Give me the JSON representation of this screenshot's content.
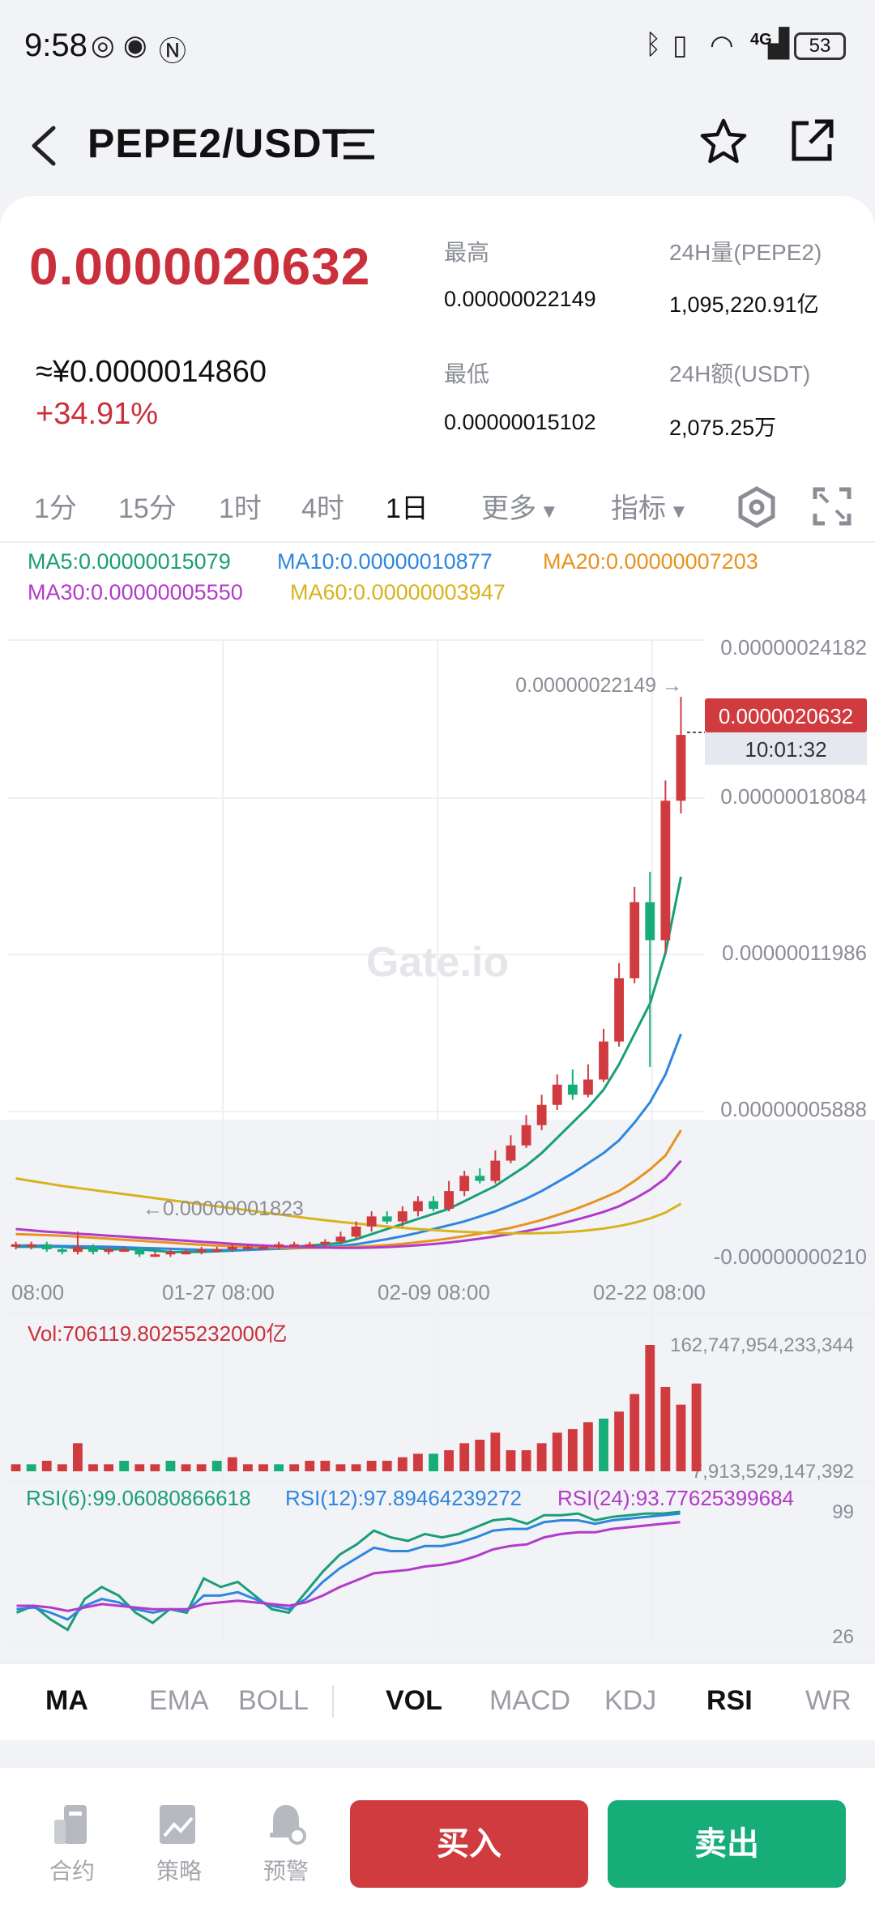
{
  "status": {
    "time": "9:58",
    "battery": "53",
    "network": "4G"
  },
  "header": {
    "pair": "PEPE2/USDT"
  },
  "ticker": {
    "last_price": "0.0000020632",
    "cny_price": "≈¥0.0000014860",
    "change_pct": "+34.91%",
    "high_label": "最高",
    "high_value": "0.00000022149",
    "low_label": "最低",
    "low_value": "0.00000015102",
    "vol_label": "24H量(PEPE2)",
    "vol_value": "1,095,220.91亿",
    "amt_label": "24H额(USDT)",
    "amt_value": "2,075.25万"
  },
  "timeframes": {
    "tf1": "1分",
    "tf2": "15分",
    "tf3": "1时",
    "tf4": "4时",
    "tf5": "1日",
    "more": "更多",
    "indicators": "指标"
  },
  "ma_legend": {
    "ma5": "MA5:0.00000015079",
    "ma10": "MA10:0.00000010877",
    "ma20": "MA20:0.00000007203",
    "ma30": "MA30:0.00000005550",
    "ma60": "MA60:0.00000003947"
  },
  "colors": {
    "up": "#d03b3f",
    "down": "#16ad78",
    "ma5": "#1a9e78",
    "ma10": "#2e86de",
    "ma20": "#e8921f",
    "ma30": "#b23bc9",
    "ma60": "#d9b21c"
  },
  "chart_data": {
    "type": "candlestick",
    "watermark": "Gate.io",
    "y_axis_labels": [
      "0.00000024182",
      "0.00000018084",
      "0.00000011986",
      "0.00000005888",
      "-0.00000000210"
    ],
    "x_axis_labels": [
      "08:00",
      "01-27 08:00",
      "02-09 08:00",
      "02-22 08:00"
    ],
    "high_marker": "0.00000022149 →",
    "low_marker": "←0.00000001823",
    "last_price_tag": "0.0000020632",
    "countdown": "10:01:32",
    "candles": [
      {
        "o": 0.4,
        "c": 0.5,
        "h": 0.6,
        "l": 0.3
      },
      {
        "o": 0.4,
        "c": 0.5,
        "h": 0.6,
        "l": 0.3
      },
      {
        "o": 0.5,
        "c": 0.3,
        "h": 0.6,
        "l": 0.2
      },
      {
        "o": 0.3,
        "c": 0.2,
        "h": 0.4,
        "l": 0.1
      },
      {
        "o": 0.2,
        "c": 0.4,
        "h": 1.0,
        "l": 0.1
      },
      {
        "o": 0.4,
        "c": 0.2,
        "h": 0.5,
        "l": 0.1
      },
      {
        "o": 0.2,
        "c": 0.3,
        "h": 0.4,
        "l": 0.1
      },
      {
        "o": 0.3,
        "c": 0.3,
        "h": 0.4,
        "l": 0.2
      },
      {
        "o": 0.3,
        "c": 0.1,
        "h": 0.4,
        "l": 0.0
      },
      {
        "o": 0.1,
        "c": 0.1,
        "h": 0.2,
        "l": 0.0
      },
      {
        "o": 0.1,
        "c": 0.2,
        "h": 0.3,
        "l": 0.0
      },
      {
        "o": 0.2,
        "c": 0.2,
        "h": 0.3,
        "l": 0.1
      },
      {
        "o": 0.2,
        "c": 0.3,
        "h": 0.4,
        "l": 0.1
      },
      {
        "o": 0.3,
        "c": 0.3,
        "h": 0.4,
        "l": 0.2
      },
      {
        "o": 0.3,
        "c": 0.4,
        "h": 0.5,
        "l": 0.2
      },
      {
        "o": 0.4,
        "c": 0.4,
        "h": 0.5,
        "l": 0.3
      },
      {
        "o": 0.4,
        "c": 0.4,
        "h": 0.5,
        "l": 0.3
      },
      {
        "o": 0.4,
        "c": 0.5,
        "h": 0.6,
        "l": 0.3
      },
      {
        "o": 0.5,
        "c": 0.5,
        "h": 0.6,
        "l": 0.4
      },
      {
        "o": 0.5,
        "c": 0.5,
        "h": 0.6,
        "l": 0.4
      },
      {
        "o": 0.5,
        "c": 0.6,
        "h": 0.7,
        "l": 0.4
      },
      {
        "o": 0.6,
        "c": 0.8,
        "h": 1.0,
        "l": 0.5
      },
      {
        "o": 0.8,
        "c": 1.2,
        "h": 1.4,
        "l": 0.7
      },
      {
        "o": 1.2,
        "c": 1.6,
        "h": 1.8,
        "l": 1.0
      },
      {
        "o": 1.6,
        "c": 1.4,
        "h": 1.8,
        "l": 1.3
      },
      {
        "o": 1.4,
        "c": 1.8,
        "h": 2.0,
        "l": 1.2
      },
      {
        "o": 1.8,
        "c": 2.2,
        "h": 2.4,
        "l": 1.6
      },
      {
        "o": 2.2,
        "c": 1.9,
        "h": 2.4,
        "l": 1.8
      },
      {
        "o": 1.9,
        "c": 2.6,
        "h": 3.0,
        "l": 1.8
      },
      {
        "o": 2.6,
        "c": 3.2,
        "h": 3.4,
        "l": 2.4
      },
      {
        "o": 3.2,
        "c": 3.0,
        "h": 3.5,
        "l": 2.9
      },
      {
        "o": 3.0,
        "c": 3.8,
        "h": 4.2,
        "l": 2.9
      },
      {
        "o": 3.8,
        "c": 4.4,
        "h": 4.8,
        "l": 3.7
      },
      {
        "o": 4.4,
        "c": 5.2,
        "h": 5.6,
        "l": 4.3
      },
      {
        "o": 5.2,
        "c": 6.0,
        "h": 6.4,
        "l": 5.0
      },
      {
        "o": 6.0,
        "c": 6.8,
        "h": 7.2,
        "l": 5.8
      },
      {
        "o": 6.8,
        "c": 6.4,
        "h": 7.4,
        "l": 6.2
      },
      {
        "o": 6.4,
        "c": 7.0,
        "h": 7.6,
        "l": 6.3
      },
      {
        "o": 7.0,
        "c": 8.5,
        "h": 9.0,
        "l": 6.9
      },
      {
        "o": 8.5,
        "c": 11.0,
        "h": 11.6,
        "l": 8.3
      },
      {
        "o": 11.0,
        "c": 14.0,
        "h": 14.6,
        "l": 10.8
      },
      {
        "o": 14.0,
        "c": 12.5,
        "h": 15.2,
        "l": 7.5
      },
      {
        "o": 12.5,
        "c": 18.0,
        "h": 18.8,
        "l": 12.0
      },
      {
        "o": 18.0,
        "c": 20.6,
        "h": 22.1,
        "l": 17.5
      }
    ],
    "price_unit": "1e-8",
    "ylim": [
      -0.21,
      24.182
    ],
    "ma_lines": {
      "ma5": [
        0.4,
        0.4,
        0.4,
        0.4,
        0.35,
        0.35,
        0.3,
        0.3,
        0.3,
        0.25,
        0.2,
        0.2,
        0.2,
        0.22,
        0.25,
        0.28,
        0.32,
        0.35,
        0.4,
        0.45,
        0.5,
        0.55,
        0.7,
        0.9,
        1.1,
        1.3,
        1.5,
        1.7,
        1.9,
        2.2,
        2.5,
        2.8,
        3.2,
        3.6,
        4.1,
        4.7,
        5.3,
        5.9,
        6.6,
        7.6,
        8.8,
        10.0,
        12.0,
        15.0
      ],
      "ma10": [
        0.45,
        0.45,
        0.44,
        0.43,
        0.42,
        0.41,
        0.4,
        0.38,
        0.36,
        0.34,
        0.32,
        0.3,
        0.28,
        0.27,
        0.27,
        0.28,
        0.3,
        0.32,
        0.34,
        0.37,
        0.4,
        0.44,
        0.5,
        0.6,
        0.7,
        0.82,
        0.95,
        1.1,
        1.25,
        1.4,
        1.6,
        1.8,
        2.05,
        2.3,
        2.6,
        2.95,
        3.3,
        3.7,
        4.1,
        4.6,
        5.3,
        6.1,
        7.2,
        8.8
      ],
      "ma20": [
        0.9,
        0.88,
        0.86,
        0.84,
        0.8,
        0.76,
        0.72,
        0.68,
        0.64,
        0.6,
        0.56,
        0.52,
        0.48,
        0.45,
        0.42,
        0.4,
        0.38,
        0.37,
        0.36,
        0.36,
        0.37,
        0.38,
        0.4,
        0.43,
        0.47,
        0.52,
        0.58,
        0.65,
        0.73,
        0.82,
        0.92,
        1.03,
        1.15,
        1.3,
        1.46,
        1.65,
        1.85,
        2.08,
        2.33,
        2.6,
        3.0,
        3.45,
        4.0,
        5.0
      ],
      "ma30": [
        1.1,
        1.05,
        1.0,
        0.96,
        0.92,
        0.88,
        0.84,
        0.8,
        0.76,
        0.72,
        0.68,
        0.64,
        0.6,
        0.56,
        0.52,
        0.48,
        0.45,
        0.42,
        0.4,
        0.38,
        0.37,
        0.36,
        0.36,
        0.37,
        0.39,
        0.42,
        0.46,
        0.51,
        0.57,
        0.64,
        0.72,
        0.81,
        0.91,
        1.02,
        1.14,
        1.28,
        1.43,
        1.6,
        1.78,
        2.0,
        2.3,
        2.65,
        3.1,
        3.8
      ],
      "ma60": [
        3.1,
        3.0,
        2.9,
        2.8,
        2.72,
        2.64,
        2.56,
        2.48,
        2.4,
        2.32,
        2.24,
        2.16,
        2.08,
        2.0,
        1.92,
        1.84,
        1.76,
        1.68,
        1.6,
        1.52,
        1.45,
        1.38,
        1.32,
        1.26,
        1.2,
        1.15,
        1.1,
        1.06,
        1.02,
        0.99,
        0.96,
        0.94,
        0.93,
        0.93,
        0.94,
        0.96,
        1.0,
        1.05,
        1.12,
        1.22,
        1.35,
        1.52,
        1.75,
        2.1
      ]
    }
  },
  "volume": {
    "label": "Vol:706119.80255232000亿",
    "max_label": "162,747,954,233,344",
    "min_label": "7,913,529,147,392",
    "bars": [
      2,
      2,
      3,
      2,
      8,
      2,
      2,
      3,
      2,
      2,
      3,
      2,
      2,
      3,
      4,
      2,
      2,
      2,
      2,
      3,
      3,
      2,
      2,
      3,
      3,
      4,
      5,
      5,
      6,
      8,
      9,
      11,
      6,
      6,
      8,
      11,
      12,
      14,
      15,
      17,
      22,
      36,
      24,
      19,
      25
    ],
    "bar_up": [
      1,
      0,
      1,
      1,
      1,
      1,
      1,
      0,
      1,
      1,
      0,
      1,
      1,
      0,
      1,
      1,
      1,
      0,
      1,
      1,
      1,
      1,
      1,
      1,
      1,
      1,
      1,
      0,
      1,
      1,
      1,
      1,
      1,
      1,
      1,
      1,
      1,
      1,
      0,
      1,
      1,
      1,
      1,
      1,
      1
    ]
  },
  "rsi": {
    "rsi6_label": "RSI(6):99.06080866618",
    "rsi12_label": "RSI(12):97.89464239272",
    "rsi24_label": "RSI(24):93.77625399684",
    "max_label": "99",
    "min_label": "26",
    "rsi6": [
      40,
      44,
      36,
      30,
      48,
      55,
      50,
      40,
      34,
      42,
      40,
      60,
      55,
      58,
      50,
      42,
      40,
      52,
      64,
      74,
      80,
      88,
      84,
      82,
      86,
      84,
      86,
      90,
      94,
      95,
      92,
      97,
      97,
      98,
      94,
      96,
      97,
      98,
      98,
      99
    ],
    "rsi12": [
      42,
      43,
      40,
      36,
      44,
      48,
      46,
      42,
      40,
      42,
      41,
      50,
      50,
      52,
      48,
      44,
      42,
      48,
      58,
      66,
      72,
      78,
      76,
      76,
      79,
      79,
      81,
      84,
      88,
      89,
      89,
      93,
      94,
      94,
      92,
      94,
      95,
      96,
      97,
      98
    ],
    "rsi24": [
      44,
      44,
      43,
      41,
      43,
      45,
      44,
      43,
      42,
      42,
      42,
      45,
      46,
      47,
      46,
      45,
      44,
      46,
      50,
      55,
      59,
      63,
      64,
      65,
      67,
      68,
      70,
      73,
      77,
      79,
      80,
      84,
      86,
      87,
      87,
      89,
      90,
      91,
      92,
      93
    ]
  },
  "indicator_tabs": {
    "ma": "MA",
    "ema": "EMA",
    "boll": "BOLL",
    "vol": "VOL",
    "macd": "MACD",
    "kdj": "KDJ",
    "rsi": "RSI",
    "wr": "WR"
  },
  "bottom_nav": {
    "contract": "合约",
    "strategy": "策略",
    "alert": "预警",
    "buy": "买入",
    "sell": "卖出"
  }
}
